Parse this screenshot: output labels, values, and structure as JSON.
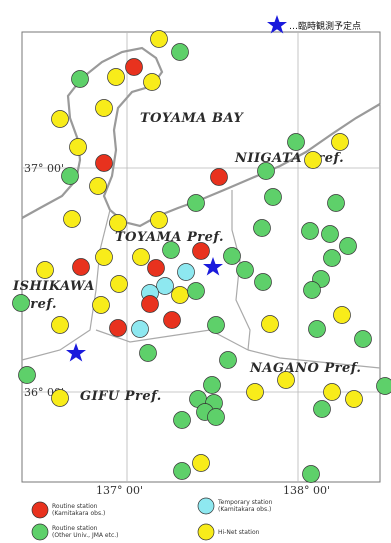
{
  "top_legend": {
    "label": "…臨時観測予定点"
  },
  "region_labels": {
    "toyama_bay": "TOYAMA BAY",
    "niigata": "NIIGATA Pref.",
    "toyama": "TOYAMA Pref.",
    "ishikawa_1": "ISHIKAWA",
    "ishikawa_2": "Pref.",
    "nagano": "NAGANO Pref.",
    "gifu": "GIFU Pref."
  },
  "lat_ticks": {
    "lat37": "37° 00'",
    "lat36": "36° 00'"
  },
  "lon_ticks": {
    "lon137": "137° 00'",
    "lon138": "138° 00'"
  },
  "legend": {
    "red": {
      "line1": "Routine station",
      "line2": "(Kamitakara obs.)"
    },
    "cyan": {
      "line1": "Temporary station",
      "line2": "(Kamitakara obs.)"
    },
    "green": {
      "line1": "Routine station",
      "line2": "(Other Univ., JMA etc.)"
    },
    "yellow": {
      "line1": "Hi-Net station",
      "line2": ""
    }
  },
  "colors": {
    "red": "#e8321e",
    "cyan": "#8ee8f0",
    "green": "#5ed06a",
    "yellow": "#f8ec1a",
    "star": "#1a1adc",
    "coast": "#9a9a9a",
    "grid": "#b8b8b8"
  }
}
